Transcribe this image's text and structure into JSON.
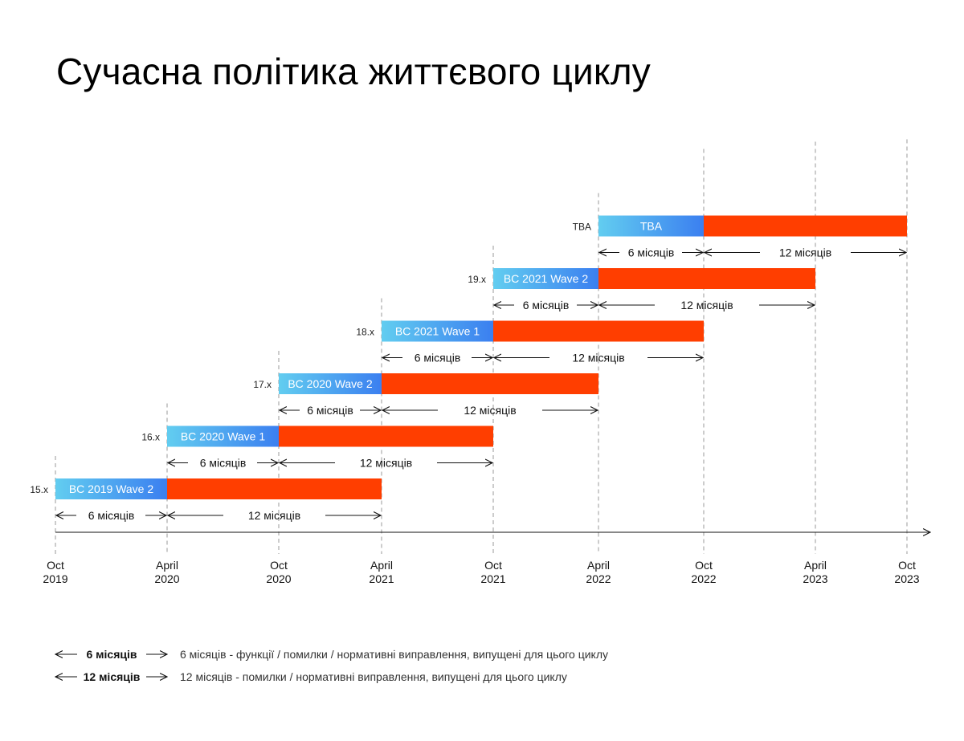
{
  "title": "Сучасна політика життєвого циклу",
  "chart_data": {
    "type": "gantt",
    "title": "Сучасна політика життєвого циклу",
    "x_axis": {
      "ticks": [
        {
          "top": "Oct",
          "bottom": "2019",
          "date": "2019-10"
        },
        {
          "top": "April",
          "bottom": "2020",
          "date": "2020-04"
        },
        {
          "top": "Oct",
          "bottom": "2020",
          "date": "2020-10"
        },
        {
          "top": "April",
          "bottom": "2021",
          "date": "2021-04"
        },
        {
          "top": "Oct",
          "bottom": "2021",
          "date": "2021-10"
        },
        {
          "top": "April",
          "bottom": "2022",
          "date": "2022-04"
        },
        {
          "top": "Oct",
          "bottom": "2022",
          "date": "2022-10"
        },
        {
          "top": "April",
          "bottom": "2023",
          "date": "2023-04"
        },
        {
          "top": "Oct",
          "bottom": "2023",
          "date": "2023-10"
        }
      ]
    },
    "series": [
      {
        "version": "15.x",
        "name": "BC 2019 Wave 2",
        "start": "2019-10",
        "phase1_end": "2020-04",
        "phase2_end": "2021-04",
        "phase1_label": "6 місяців",
        "phase2_label": "12 місяців"
      },
      {
        "version": "16.x",
        "name": "BC 2020 Wave 1",
        "start": "2020-04",
        "phase1_end": "2020-10",
        "phase2_end": "2021-10",
        "phase1_label": "6 місяців",
        "phase2_label": "12 місяців"
      },
      {
        "version": "17.x",
        "name": "BC 2020 Wave 2",
        "start": "2020-10",
        "phase1_end": "2021-04",
        "phase2_end": "2022-04",
        "phase1_label": "6 місяців",
        "phase2_label": "12 місяців"
      },
      {
        "version": "18.x",
        "name": "BC 2021 Wave 1",
        "start": "2021-04",
        "phase1_end": "2021-10",
        "phase2_end": "2022-10",
        "phase1_label": "6 місяців",
        "phase2_label": "12 місяців"
      },
      {
        "version": "19.x",
        "name": "BC 2021 Wave 2",
        "start": "2021-10",
        "phase1_end": "2022-04",
        "phase2_end": "2023-04",
        "phase1_label": "6 місяців",
        "phase2_label": "12 місяців"
      },
      {
        "version": "TBA",
        "name": "TBA",
        "start": "2022-04",
        "phase1_end": "2022-10",
        "phase2_end": "2023-10",
        "phase1_label": "6 місяців",
        "phase2_label": "12 місяців"
      }
    ],
    "colors": {
      "phase1_gradient_start": "#62cdf0",
      "phase1_gradient_end": "#3b7ff0",
      "phase2": "#ff3e00",
      "gridline": "#9a9a9a",
      "axis": "#111111"
    }
  },
  "legend": [
    {
      "symbol_label": "6 місяців",
      "description": "6 місяців - функції / помилки / нормативні виправлення, випущені для цього циклу"
    },
    {
      "symbol_label": "12 місяців",
      "description": "12 місяців - помилки / нормативні виправлення, випущені для цього циклу"
    }
  ]
}
